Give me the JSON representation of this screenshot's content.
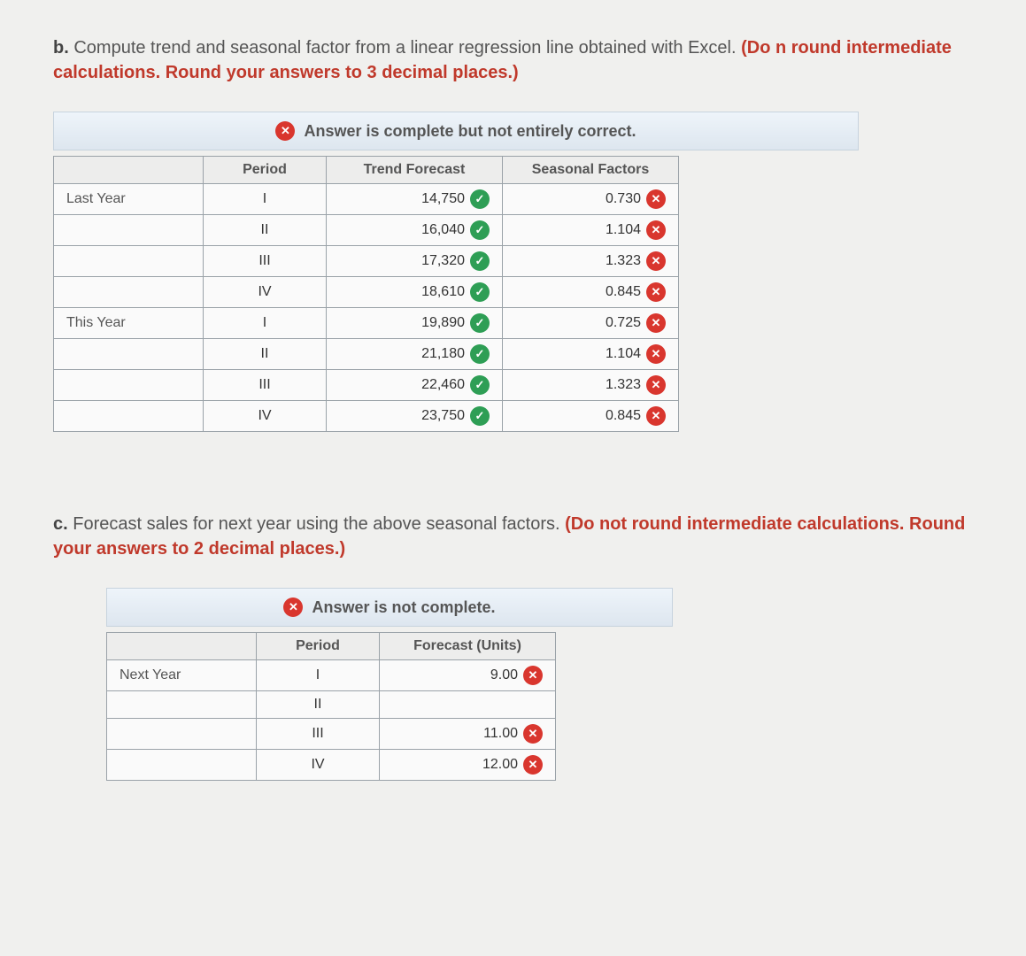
{
  "colors": {
    "red_text": "#c0392b",
    "banner_bg_top": "#eef4fa",
    "banner_bg_bot": "#dde6ef",
    "icon_x": "#d9362e",
    "icon_check": "#2e9e55",
    "border": "#9aa2a8"
  },
  "partB": {
    "prompt_prefix": "b. ",
    "prompt_main": "Compute trend and seasonal factor from a linear regression line obtained with Excel. ",
    "prompt_red": "(Do n round intermediate calculations. Round your answers to 3 decimal places.)",
    "banner": "Answer is complete but not entirely correct.",
    "headers": {
      "col1": "",
      "col2": "Period",
      "col3": "Trend Forecast",
      "col4": "Seasonal Factors"
    },
    "rows": [
      {
        "group": "Last Year",
        "period": "I",
        "trend": "14,750",
        "trend_ok": true,
        "sf": "0.730",
        "sf_ok": false
      },
      {
        "group": "",
        "period": "II",
        "trend": "16,040",
        "trend_ok": true,
        "sf": "1.104",
        "sf_ok": false
      },
      {
        "group": "",
        "period": "III",
        "trend": "17,320",
        "trend_ok": true,
        "sf": "1.323",
        "sf_ok": false
      },
      {
        "group": "",
        "period": "IV",
        "trend": "18,610",
        "trend_ok": true,
        "sf": "0.845",
        "sf_ok": false
      },
      {
        "group": "This Year",
        "period": "I",
        "trend": "19,890",
        "trend_ok": true,
        "sf": "0.725",
        "sf_ok": false
      },
      {
        "group": "",
        "period": "II",
        "trend": "21,180",
        "trend_ok": true,
        "sf": "1.104",
        "sf_ok": false
      },
      {
        "group": "",
        "period": "III",
        "trend": "22,460",
        "trend_ok": true,
        "sf": "1.323",
        "sf_ok": false
      },
      {
        "group": "",
        "period": "IV",
        "trend": "23,750",
        "trend_ok": true,
        "sf": "0.845",
        "sf_ok": false
      }
    ]
  },
  "partC": {
    "prompt_prefix": "c. ",
    "prompt_main": "Forecast sales for next year using the above seasonal factors. ",
    "prompt_red": "(Do not round intermediate calculations. Round your answers to 2 decimal places.)",
    "banner": "Answer is not complete.",
    "headers": {
      "col1": "",
      "col2": "Period",
      "col3": "Forecast (Units)"
    },
    "rows": [
      {
        "group": "Next Year",
        "period": "I",
        "forecast": "9.00",
        "ok": false
      },
      {
        "group": "",
        "period": "II",
        "forecast": "",
        "ok": null
      },
      {
        "group": "",
        "period": "III",
        "forecast": "11.00",
        "ok": false
      },
      {
        "group": "",
        "period": "IV",
        "forecast": "12.00",
        "ok": false
      }
    ]
  }
}
